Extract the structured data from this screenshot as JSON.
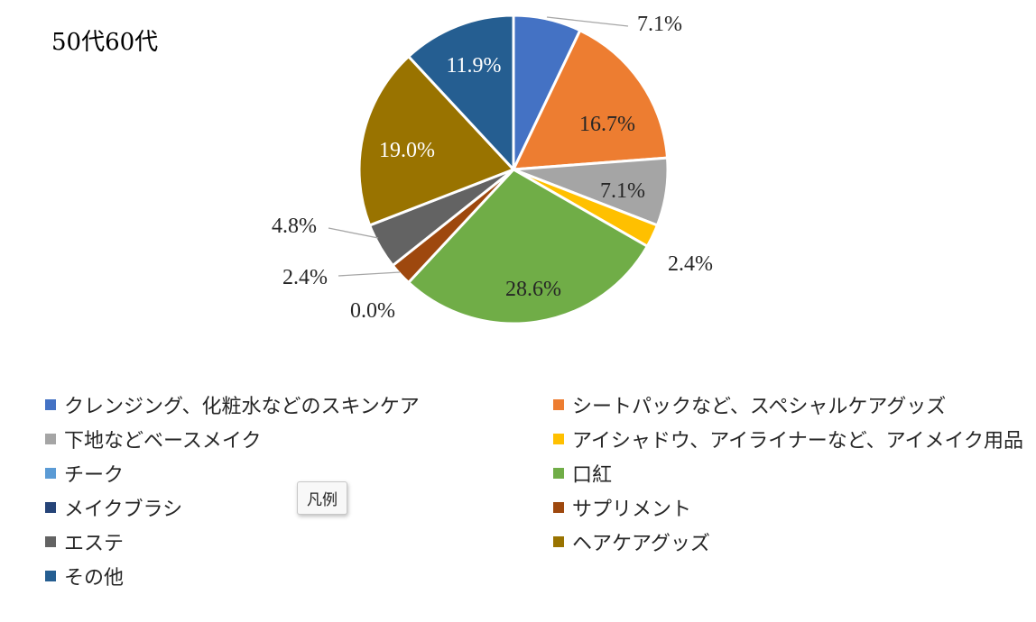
{
  "chart_data": {
    "type": "pie",
    "title": "50代60代",
    "categories": [
      "クレンジング、化粧水などのスキンケア",
      "シートパックなど、スペシャルケアグッズ",
      "下地などベースメイク",
      "アイシャドウ、アイライナーなど、アイメイク用品",
      "チーク",
      "口紅",
      "メイクブラシ",
      "サプリメント",
      "エステ",
      "ヘアケアグッズ",
      "その他"
    ],
    "values": [
      7.1,
      16.7,
      7.1,
      2.4,
      0.0,
      28.6,
      0.0,
      2.4,
      4.8,
      19.0,
      11.9
    ],
    "labels": [
      "7.1%",
      "16.7%",
      "7.1%",
      "2.4%",
      "",
      "28.6%",
      "0.0%",
      "2.4%",
      "4.8%",
      "19.0%",
      "11.9%"
    ],
    "colors": [
      "#4472C4",
      "#ED7D31",
      "#A5A5A5",
      "#FFC000",
      "#5B9BD5",
      "#70AD47",
      "#264478",
      "#9E480E",
      "#636363",
      "#997300",
      "#255E91"
    ],
    "legend_position": "bottom"
  },
  "legend_tooltip": "凡例"
}
